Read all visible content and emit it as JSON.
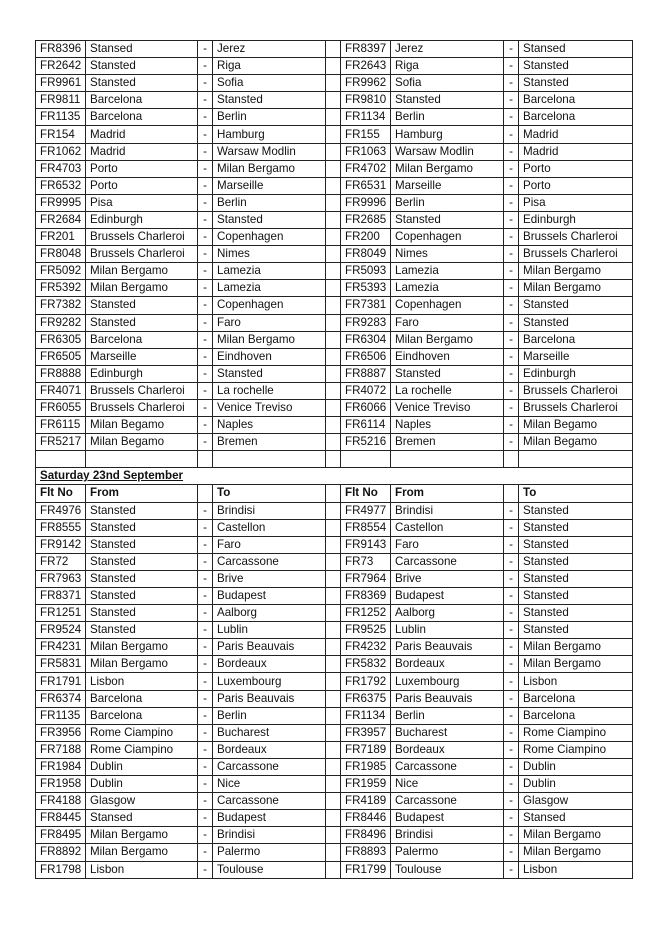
{
  "section1": {
    "rows": [
      [
        "FR8396",
        "Stansed",
        "Jerez",
        "FR8397",
        "Jerez",
        "Stansed"
      ],
      [
        "FR2642",
        "Stansted",
        "Riga",
        "FR2643",
        "Riga",
        "Stansted"
      ],
      [
        "FR9961",
        "Stansted",
        "Sofia",
        "FR9962",
        "Sofia",
        "Stansted"
      ],
      [
        "FR9811",
        "Barcelona",
        "Stansted",
        "FR9810",
        "Stansted",
        "Barcelona"
      ],
      [
        "FR1135",
        "Barcelona",
        "Berlin",
        "FR1134",
        "Berlin",
        "Barcelona"
      ],
      [
        "FR154",
        "Madrid",
        "Hamburg",
        "FR155",
        "Hamburg",
        "Madrid"
      ],
      [
        "FR1062",
        "Madrid",
        "Warsaw Modlin",
        "FR1063",
        "Warsaw Modlin",
        "Madrid"
      ],
      [
        "FR4703",
        "Porto",
        "Milan Bergamo",
        "FR4702",
        "Milan Bergamo",
        "Porto"
      ],
      [
        "FR6532",
        "Porto",
        "Marseille",
        "FR6531",
        "Marseille",
        "Porto"
      ],
      [
        "FR9995",
        "Pisa",
        "Berlin",
        "FR9996",
        "Berlin",
        "Pisa"
      ],
      [
        "FR2684",
        "Edinburgh",
        "Stansted",
        "FR2685",
        "Stansted",
        "Edinburgh"
      ],
      [
        "FR201",
        "Brussels Charleroi",
        "Copenhagen",
        "FR200",
        "Copenhagen",
        "Brussels Charleroi"
      ],
      [
        "FR8048",
        "Brussels Charleroi",
        "Nimes",
        "FR8049",
        "Nimes",
        "Brussels Charleroi"
      ],
      [
        "FR5092",
        "Milan Bergamo",
        "Lamezia",
        "FR5093",
        "Lamezia",
        "Milan Bergamo"
      ],
      [
        "FR5392",
        "Milan Bergamo",
        "Lamezia",
        "FR5393",
        "Lamezia",
        "Milan Bergamo"
      ],
      [
        "FR7382",
        "Stansted",
        "Copenhagen",
        "FR7381",
        "Copenhagen",
        "Stansted"
      ],
      [
        "FR9282",
        "Stansted",
        "Faro",
        "FR9283",
        "Faro",
        "Stansted"
      ],
      [
        "FR6305",
        "Barcelona",
        "Milan Bergamo",
        "FR6304",
        "Milan Bergamo",
        "Barcelona"
      ],
      [
        "FR6505",
        "Marseille",
        "Eindhoven",
        "FR6506",
        "Eindhoven",
        "Marseille"
      ],
      [
        "FR8888",
        "Edinburgh",
        "Stansted",
        "FR8887",
        "Stansted",
        "Edinburgh"
      ],
      [
        "FR4071",
        "Brussels Charleroi",
        "La rochelle",
        "FR4072",
        "La rochelle",
        "Brussels Charleroi"
      ],
      [
        "FR6055",
        "Brussels Charleroi",
        "Venice Treviso",
        "FR6066",
        "Venice Treviso",
        "Brussels Charleroi"
      ],
      [
        "FR6115",
        "Milan Begamo",
        "Naples",
        "FR6114",
        "Naples",
        "Milan Begamo"
      ],
      [
        "FR5217",
        "Milan Begamo",
        "Bremen",
        "FR5216",
        "Bremen",
        "Milan Begamo"
      ]
    ]
  },
  "dash": "-",
  "section2": {
    "title": "Saturday 23nd September",
    "headers": {
      "flt": "Flt No",
      "from": "From",
      "to": "To"
    },
    "rows": [
      [
        "FR4976",
        "Stansted",
        "Brindisi",
        "FR4977",
        "Brindisi",
        "Stansted"
      ],
      [
        "FR8555",
        "Stansted",
        "Castellon",
        "FR8554",
        "Castellon",
        "Stansted"
      ],
      [
        "FR9142",
        "Stansted",
        "Faro",
        "FR9143",
        "Faro",
        "Stansted"
      ],
      [
        "FR72",
        "Stansted",
        "Carcassone",
        "FR73",
        "Carcassone",
        "Stansted"
      ],
      [
        "FR7963",
        "Stansted",
        "Brive",
        "FR7964",
        "Brive",
        "Stansted"
      ],
      [
        "FR8371",
        "Stansted",
        "Budapest",
        "FR8369",
        "Budapest",
        "Stansted"
      ],
      [
        "FR1251",
        "Stansted",
        "Aalborg",
        "FR1252",
        "Aalborg",
        "Stansted"
      ],
      [
        "FR9524",
        "Stansted",
        "Lublin",
        "FR9525",
        "Lublin",
        "Stansted"
      ],
      [
        "FR4231",
        "Milan Bergamo",
        "Paris Beauvais",
        "FR4232",
        "Paris Beauvais",
        "Milan Bergamo"
      ],
      [
        "FR5831",
        "Milan Bergamo",
        "Bordeaux",
        "FR5832",
        "Bordeaux",
        "Milan Bergamo"
      ],
      [
        "FR1791",
        "Lisbon",
        "Luxembourg",
        "FR1792",
        "Luxembourg",
        "Lisbon"
      ],
      [
        "FR6374",
        "Barcelona",
        "Paris Beauvais",
        "FR6375",
        "Paris Beauvais",
        "Barcelona"
      ],
      [
        "FR1135",
        "Barcelona",
        "Berlin",
        "FR1134",
        "Berlin",
        "Barcelona"
      ],
      [
        "FR3956",
        "Rome Ciampino",
        "Bucharest",
        "FR3957",
        "Bucharest",
        "Rome Ciampino"
      ],
      [
        "FR7188",
        "Rome Ciampino",
        "Bordeaux",
        "FR7189",
        "Bordeaux",
        "Rome Ciampino"
      ],
      [
        "FR1984",
        "Dublin",
        "Carcassone",
        "FR1985",
        "Carcassone",
        "Dublin"
      ],
      [
        "FR1958",
        "Dublin",
        "Nice",
        "FR1959",
        "Nice",
        "Dublin"
      ],
      [
        "FR4188",
        "Glasgow",
        "Carcassone",
        "FR4189",
        "Carcassone",
        "Glasgow"
      ],
      [
        "FR8445",
        "Stansed",
        "Budapest",
        "FR8446",
        "Budapest",
        "Stansed"
      ],
      [
        "FR8495",
        "Milan Bergamo",
        "Brindisi",
        "FR8496",
        "Brindisi",
        "Milan Bergamo"
      ],
      [
        "FR8892",
        "Milan Bergamo",
        "Palermo",
        "FR8893",
        "Palermo",
        "Milan Bergamo"
      ],
      [
        "FR1798",
        "Lisbon",
        "Toulouse",
        "FR1799",
        "Toulouse",
        "Lisbon"
      ]
    ]
  }
}
